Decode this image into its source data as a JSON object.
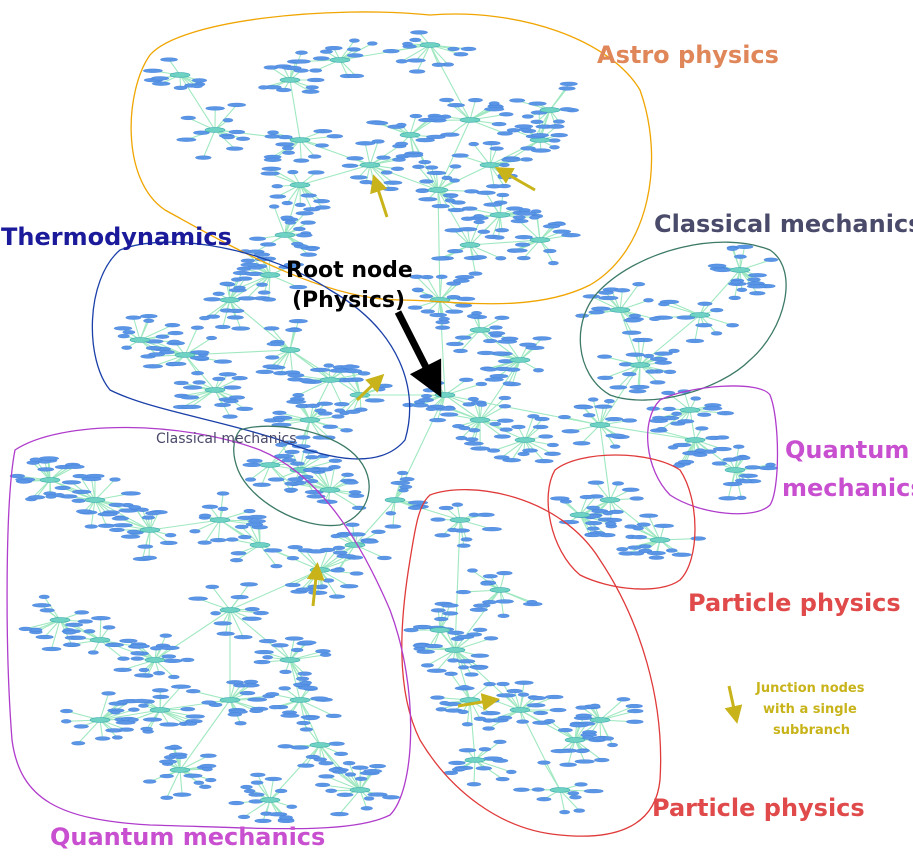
{
  "diagram": {
    "labels": {
      "astro": "Astro physics",
      "classical_top": "Classical mechanics",
      "thermo": "Thermodynamics",
      "root_line1": "Root node",
      "root_line2": "(Physics)",
      "classical_small": "Classical mechanics",
      "quantum_right_line1": "Quantum",
      "quantum_right_line2": "mechanics",
      "particle_right": "Particle physics",
      "particle_bottom": "Particle physics",
      "quantum_bottom": "Quantum mechanics",
      "junction_line1": "Junction nodes",
      "junction_line2": "with a single",
      "junction_line3": "subbranch"
    },
    "colors": {
      "astro": "#f0a500",
      "astro_text": "#e0875a",
      "classical": "#3d7a68",
      "classical_text": "#4a4a6a",
      "thermo": "#1a3fa8",
      "thermo_text": "#1a1a9a",
      "quantum": "#b03ccc",
      "quantum_text": "#c84fcf",
      "particle": "#e03a3a",
      "particle_text": "#e04a4a",
      "junction": "#c8b41a",
      "root_arrow": "#000000",
      "edge": "#9fe8c0",
      "node": "#5b95e6",
      "hub": "#6fd3c3"
    }
  }
}
